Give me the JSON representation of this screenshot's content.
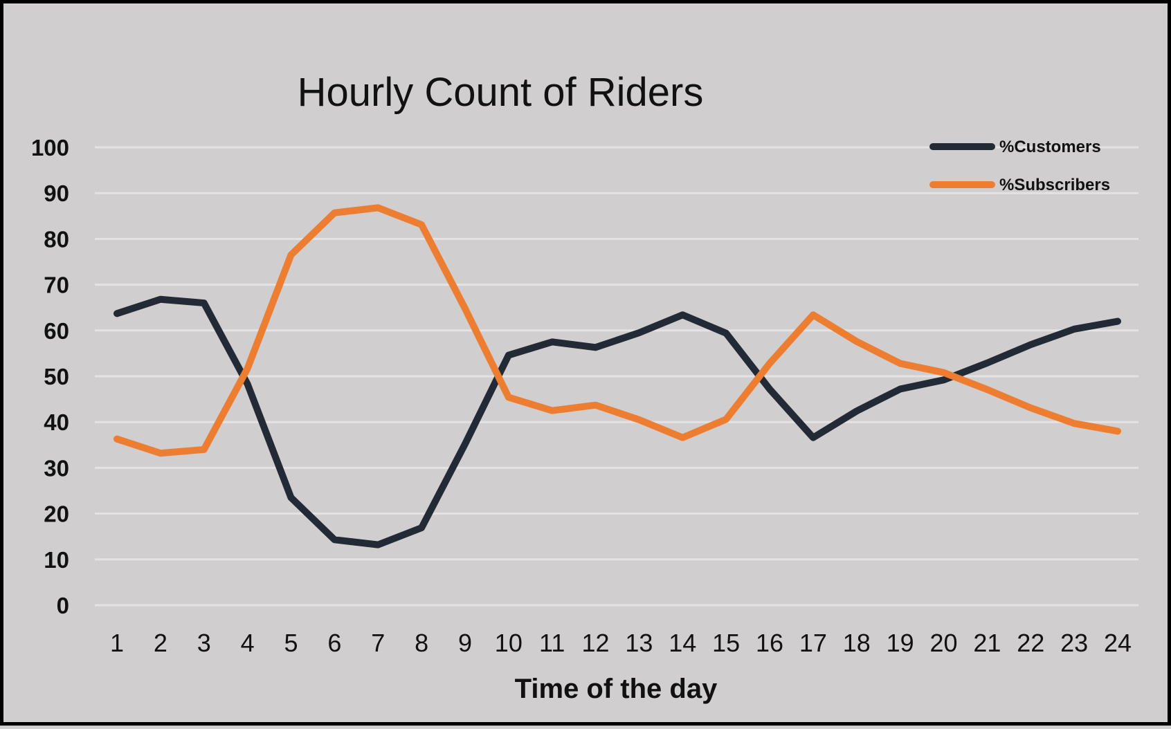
{
  "chart_data": {
    "type": "line",
    "title": "Hourly Count of Riders",
    "xlabel": "Time of the day",
    "ylabel": "",
    "x": [
      "1",
      "2",
      "3",
      "4",
      "5",
      "6",
      "7",
      "8",
      "9",
      "10",
      "11",
      "12",
      "13",
      "14",
      "15",
      "16",
      "17",
      "18",
      "19",
      "20",
      "21",
      "22",
      "23",
      "24"
    ],
    "yticks": [
      "0",
      "10",
      "20",
      "30",
      "40",
      "50",
      "60",
      "70",
      "80",
      "90",
      "100"
    ],
    "ylim": [
      0,
      100
    ],
    "grid": true,
    "legend_position": "top-right",
    "series": [
      {
        "name": "%Customers",
        "color": "#222a35",
        "values": [
          63.7,
          66.8,
          66.0,
          48.3,
          23.5,
          14.3,
          13.2,
          16.9,
          35.2,
          54.6,
          57.5,
          56.3,
          59.5,
          63.4,
          59.4,
          47.2,
          36.6,
          42.4,
          47.2,
          49.2,
          52.9,
          56.9,
          60.3,
          62.0
        ],
        "legend_label": "%Customers"
      },
      {
        "name": "%Subscribers",
        "color": "#ed7d31",
        "values": [
          36.3,
          33.2,
          34.0,
          51.7,
          76.5,
          85.7,
          86.8,
          83.1,
          64.8,
          45.4,
          42.5,
          43.7,
          40.5,
          36.6,
          40.6,
          52.8,
          63.4,
          57.6,
          52.8,
          50.8,
          47.1,
          43.1,
          39.7,
          38.0
        ],
        "legend_label": "%Subscribers"
      }
    ],
    "colors": {
      "background": "#d0cece",
      "gridline": "#e4e2e2",
      "text": "#111111"
    }
  }
}
